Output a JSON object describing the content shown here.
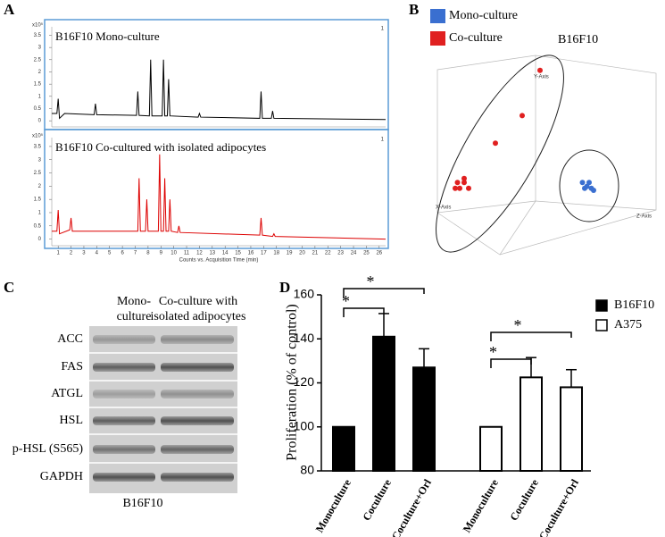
{
  "panel_labels": [
    "A",
    "B",
    "C",
    "D"
  ],
  "chart_data": [
    {
      "type": "line",
      "title": "B16F10 Mono-culture",
      "y_scale_label": "x10⁵",
      "corner_note": "1",
      "color": "#000000",
      "x": [
        0.5,
        0.9,
        1.0,
        1.1,
        1.5,
        3.8,
        3.9,
        4.0,
        7.1,
        7.2,
        7.3,
        8.1,
        8.2,
        8.3,
        9.1,
        9.2,
        9.3,
        9.5,
        9.6,
        9.7,
        11.9,
        12.0,
        12.1,
        16.7,
        16.8,
        16.9,
        17.6,
        17.7,
        17.8,
        26.5
      ],
      "values": [
        0.3,
        0.3,
        0.9,
        0.1,
        0.3,
        0.25,
        0.7,
        0.25,
        0.22,
        1.2,
        0.22,
        0.2,
        2.5,
        0.2,
        0.2,
        2.5,
        0.2,
        0.2,
        1.7,
        0.2,
        0.15,
        0.3,
        0.15,
        0.1,
        1.2,
        0.1,
        0.1,
        0.4,
        0.1,
        0.05
      ],
      "xlim": [
        0.5,
        26.5
      ],
      "ylim": [
        -0.25,
        3.7
      ],
      "yticks": [
        0,
        0.5,
        1,
        1.5,
        2,
        2.5,
        3,
        3.5
      ]
    },
    {
      "type": "line",
      "title": "B16F10 Co-cultured with isolated adipocytes",
      "y_scale_label": "x10⁵",
      "corner_note": "1",
      "color": "#dd0000",
      "x_label": "Counts vs. Acquisition Time (min)",
      "x": [
        0.5,
        0.9,
        1.0,
        1.1,
        1.9,
        2.0,
        2.1,
        7.2,
        7.3,
        7.4,
        7.8,
        7.9,
        8.0,
        8.8,
        8.9,
        9.0,
        9.2,
        9.3,
        9.4,
        9.6,
        9.7,
        9.8,
        10.3,
        10.4,
        10.5,
        16.7,
        16.8,
        16.9,
        17.7,
        17.8,
        17.9,
        26.5
      ],
      "values": [
        0.3,
        0.3,
        1.1,
        0.2,
        0.35,
        0.8,
        0.3,
        0.3,
        2.3,
        0.3,
        0.3,
        1.5,
        0.3,
        0.3,
        3.2,
        0.3,
        0.3,
        2.3,
        0.3,
        0.3,
        1.5,
        0.3,
        0.25,
        0.5,
        0.25,
        0.15,
        0.8,
        0.15,
        0.1,
        0.2,
        0.1,
        0.0
      ],
      "xlim": [
        0.5,
        26.5
      ],
      "ylim": [
        -0.25,
        3.7
      ],
      "xticks": [
        1,
        2,
        3,
        4,
        5,
        6,
        7,
        8,
        9,
        10,
        11,
        12,
        13,
        14,
        15,
        16,
        17,
        18,
        19,
        20,
        21,
        22,
        23,
        24,
        25,
        26
      ],
      "yticks": [
        0,
        0.5,
        1,
        1.5,
        2,
        2.5,
        3,
        3.5
      ]
    },
    {
      "type": "scatter3d",
      "title": "B16F10",
      "axis_labels": [
        "Y-Axis",
        "X-Axis",
        "Z-Axis"
      ],
      "xlim": [
        0,
        100
      ],
      "ylim": [
        0,
        100
      ],
      "series": [
        {
          "name": "Mono-culture",
          "color": "#3a6fd0",
          "x": [
            67,
            69,
            71,
            72,
            68,
            70
          ],
          "values": [
            39,
            37,
            36,
            35,
            36,
            39
          ]
        },
        {
          "name": "Co-culture",
          "color": "#e02020",
          "x": [
            48,
            40,
            28,
            14,
            12,
            11,
            16,
            10,
            14
          ],
          "values": [
            96,
            73,
            59,
            39,
            36,
            39,
            36,
            36,
            41
          ]
        }
      ]
    },
    {
      "type": "bar",
      "y_label": "Proliferation (% of control)",
      "ylim": [
        80,
        160
      ],
      "yticks": [
        80,
        100,
        120,
        140,
        160
      ],
      "categories": [
        "Monoculture",
        "Coculture",
        "Coculture+Orl",
        "Monoculture",
        "Coculture",
        "Coculture+Orl"
      ],
      "annotations": [
        "*",
        "*",
        "*",
        "*"
      ],
      "series": [
        {
          "name": "B16F10",
          "color": "#000000",
          "values": [
            100,
            141,
            127,
            null,
            null,
            null
          ],
          "errors": [
            0,
            10.5,
            8.5,
            null,
            null,
            null
          ]
        },
        {
          "name": "A375",
          "color": "#ffffff",
          "values": [
            null,
            null,
            null,
            100,
            122.5,
            118
          ],
          "errors": [
            null,
            null,
            null,
            0,
            9,
            8
          ]
        }
      ]
    }
  ],
  "blot": {
    "columns": [
      [
        "Mono-",
        "culture"
      ],
      [
        "Co-culture with",
        "isolated adipocytes"
      ]
    ],
    "rows": [
      "ACC",
      "FAS",
      "ATGL",
      "HSL",
      "p-HSL (S565)",
      "GAPDH"
    ],
    "caption": "B16F10"
  }
}
